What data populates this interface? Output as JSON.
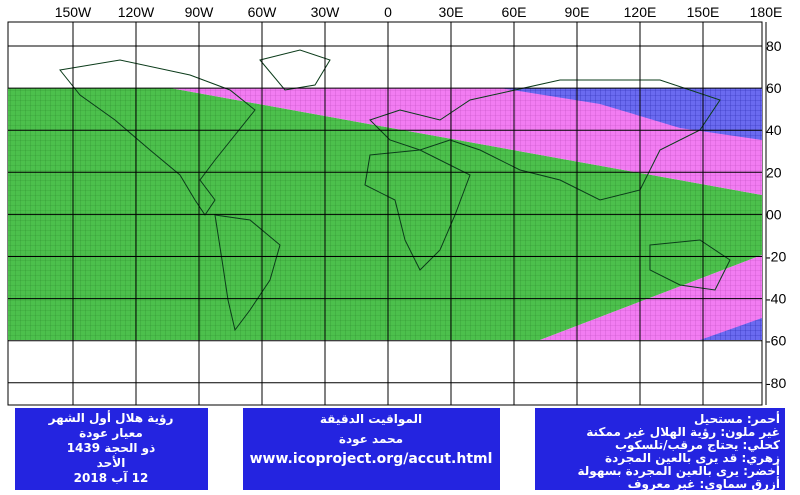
{
  "map": {
    "longitude_labels": [
      "150W",
      "120W",
      "90W",
      "60W",
      "30W",
      "0",
      "30E",
      "60E",
      "90E",
      "120E",
      "150E",
      "180E"
    ],
    "latitude_labels": [
      "80",
      "60",
      "40",
      "20",
      "00",
      "-20",
      "-40",
      "-60",
      "-80"
    ],
    "boxes": [
      {
        "lines": [
          "رؤية هلال أول الشهر",
          "معيار عودة",
          "ذو الحجة 1439",
          "الأحد",
          "12 آب 2018"
        ]
      },
      {
        "lines": [
          "المواقيت الدقيقة",
          "محمد عودة",
          "www.icoproject.org/accut.html"
        ]
      },
      {
        "lines": [
          "أحمر: مستحيل",
          "غير ملون: رؤية الهلال غير ممكنة",
          "كحلي: يحتاج مرقب/تلسكوب",
          "زهري: قد يرى بالعين المجردة",
          "أخضر: يرى بالعين المجردة بسهولة",
          "أزرق سماوي: غير معروف"
        ]
      }
    ]
  }
}
